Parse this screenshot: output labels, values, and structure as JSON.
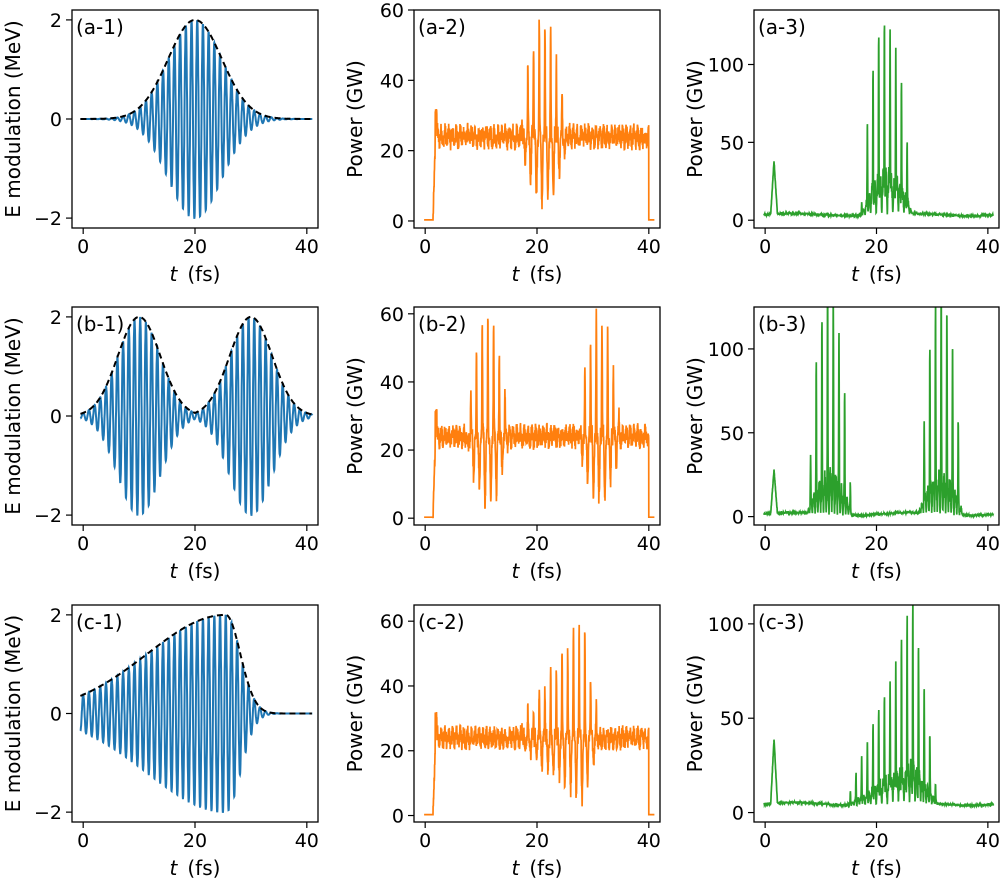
{
  "figure": {
    "xlabel_var": "t",
    "xlabel_unit": "(fs)"
  },
  "colors": {
    "modulation": "#1f77b4",
    "power_mid": "#ff7f0e",
    "power_right": "#2ca02c",
    "envelope": "#000000"
  },
  "chart_data": [
    {
      "id": "a-1",
      "label": "(a-1)",
      "type": "line",
      "kind": "modulation",
      "envelope": "gauss",
      "ylabel": "E modulation (MeV)",
      "xlim": [
        -2,
        42
      ],
      "ylim": [
        -2.2,
        2.2
      ],
      "xticks": [
        0,
        20,
        40
      ],
      "yticks": [
        -2,
        0,
        2
      ],
      "ytick_labels": [
        "−2",
        "0",
        "2"
      ],
      "xtick_labels": [
        "0",
        "20",
        "40"
      ],
      "series": [
        {
          "name": "E modulation",
          "amplitude_peak": 2,
          "center_fs": 20,
          "sigma_fs": 4.8
        },
        {
          "name": "envelope",
          "style": "dashed"
        }
      ]
    },
    {
      "id": "a-2",
      "label": "(a-2)",
      "type": "line",
      "kind": "power",
      "ylabel": "Power (GW)",
      "xlim": [
        -2,
        42
      ],
      "ylim": [
        -2,
        60
      ],
      "xticks": [
        0,
        20,
        40
      ],
      "yticks": [
        0,
        20,
        40,
        60
      ],
      "ytick_labels": [
        "0",
        "20",
        "40",
        "60"
      ],
      "xtick_labels": [
        "0",
        "20",
        "40"
      ],
      "series": [
        {
          "name": "Power",
          "baseline_gw": 24,
          "on_fs": [
            1.8,
            40
          ],
          "spike_initial_gw": 31,
          "bursts": [
            {
              "center_fs": 21.2,
              "halfwidth_fs": 4.2,
              "peak_gw": 57
            }
          ]
        }
      ]
    },
    {
      "id": "a-3",
      "label": "(a-3)",
      "type": "line",
      "kind": "power",
      "ylabel": "Power (GW)",
      "xlim": [
        -2,
        42
      ],
      "ylim": [
        -5,
        135
      ],
      "xticks": [
        0,
        20,
        40
      ],
      "yticks": [
        0,
        50,
        100
      ],
      "ytick_labels": [
        "0",
        "50",
        "100"
      ],
      "xtick_labels": [
        "0",
        "20",
        "40"
      ],
      "series": [
        {
          "name": "Power",
          "background_gw": 3,
          "spike_initial_gw": 37,
          "bursts": [
            {
              "center_fs": 21.8,
              "halfwidth_fs": 4.6,
              "peak_gw": 128
            }
          ]
        }
      ]
    },
    {
      "id": "b-1",
      "label": "(b-1)",
      "type": "line",
      "kind": "modulation",
      "envelope": "double",
      "ylabel": "E modulation (MeV)",
      "xlim": [
        -2,
        42
      ],
      "ylim": [
        -2.2,
        2.2
      ],
      "xticks": [
        0,
        20,
        40
      ],
      "yticks": [
        -2,
        0,
        2
      ],
      "ytick_labels": [
        "−2",
        "0",
        "2"
      ],
      "xtick_labels": [
        "0",
        "20",
        "40"
      ],
      "series": [
        {
          "name": "E modulation",
          "amplitude_peak": 2,
          "centers_fs": [
            10,
            30
          ],
          "sigma_fs": 3.8
        },
        {
          "name": "envelope",
          "style": "dashed"
        }
      ]
    },
    {
      "id": "b-2",
      "label": "(b-2)",
      "type": "line",
      "kind": "power",
      "ylabel": "Power (GW)",
      "xlim": [
        -2,
        42
      ],
      "ylim": [
        -2,
        62
      ],
      "xticks": [
        0,
        20,
        40
      ],
      "yticks": [
        0,
        20,
        40,
        60
      ],
      "ytick_labels": [
        "0",
        "20",
        "40",
        "60"
      ],
      "xtick_labels": [
        "0",
        "20",
        "40"
      ],
      "series": [
        {
          "name": "Power",
          "baseline_gw": 24,
          "on_fs": [
            1.8,
            40
          ],
          "spike_initial_gw": 31,
          "bursts": [
            {
              "center_fs": 11.2,
              "halfwidth_fs": 3.8,
              "peak_gw": 59
            },
            {
              "center_fs": 31.2,
              "halfwidth_fs": 3.8,
              "peak_gw": 58
            }
          ]
        }
      ]
    },
    {
      "id": "b-3",
      "label": "(b-3)",
      "type": "line",
      "kind": "power",
      "ylabel": "Power (GW)",
      "xlim": [
        -2,
        42
      ],
      "ylim": [
        -5,
        125
      ],
      "xticks": [
        0,
        20,
        40
      ],
      "yticks": [
        0,
        50,
        100
      ],
      "ytick_labels": [
        "0",
        "50",
        "100"
      ],
      "xtick_labels": [
        "0",
        "20",
        "40"
      ],
      "series": [
        {
          "name": "Power",
          "background_gw": 1,
          "spike_initial_gw": 27,
          "bursts": [
            {
              "center_fs": 11.6,
              "halfwidth_fs": 4.0,
              "peak_gw": 121
            },
            {
              "center_fs": 31.6,
              "halfwidth_fs": 4.0,
              "peak_gw": 118
            }
          ]
        }
      ]
    },
    {
      "id": "c-1",
      "label": "(c-1)",
      "type": "line",
      "kind": "modulation",
      "envelope": "skew",
      "ylabel": "E modulation (MeV)",
      "xlim": [
        -2,
        42
      ],
      "ylim": [
        -2.2,
        2.2
      ],
      "xticks": [
        0,
        20,
        40
      ],
      "yticks": [
        -2,
        0,
        2
      ],
      "ytick_labels": [
        "−2",
        "0",
        "2"
      ],
      "xtick_labels": [
        "0",
        "20",
        "40"
      ],
      "series": [
        {
          "name": "E modulation",
          "amplitude_peak": 2,
          "peak_fs": 25.5
        },
        {
          "name": "envelope",
          "style": "dashed"
        }
      ]
    },
    {
      "id": "c-2",
      "label": "(c-2)",
      "type": "line",
      "kind": "power",
      "ylabel": "Power (GW)",
      "xlim": [
        -2,
        42
      ],
      "ylim": [
        -2,
        65
      ],
      "xticks": [
        0,
        20,
        40
      ],
      "yticks": [
        0,
        20,
        40,
        60
      ],
      "ytick_labels": [
        "0",
        "20",
        "40",
        "60"
      ],
      "xtick_labels": [
        "0",
        "20",
        "40"
      ],
      "series": [
        {
          "name": "Power",
          "baseline_gw": 24,
          "on_fs": [
            1.8,
            40
          ],
          "spike_initial_gw": 31,
          "ramp_burst": {
            "start_fs": 16,
            "peak_fs": 28,
            "end_fs": 31.5,
            "peak_gw": 60
          }
        }
      ]
    },
    {
      "id": "c-3",
      "label": "(c-3)",
      "type": "line",
      "kind": "power",
      "ylabel": "Power (GW)",
      "xlim": [
        -2,
        42
      ],
      "ylim": [
        -5,
        110
      ],
      "xticks": [
        0,
        20,
        40
      ],
      "yticks": [
        0,
        50,
        100
      ],
      "ytick_labels": [
        "0",
        "50",
        "100"
      ],
      "xtick_labels": [
        "0",
        "20",
        "40"
      ],
      "series": [
        {
          "name": "Power",
          "background_gw": 4,
          "spike_initial_gw": 38,
          "ramp_burst": {
            "start_fs": 14.5,
            "peak_fs": 26.5,
            "end_fs": 31,
            "peak_gw": 104
          }
        }
      ]
    }
  ]
}
